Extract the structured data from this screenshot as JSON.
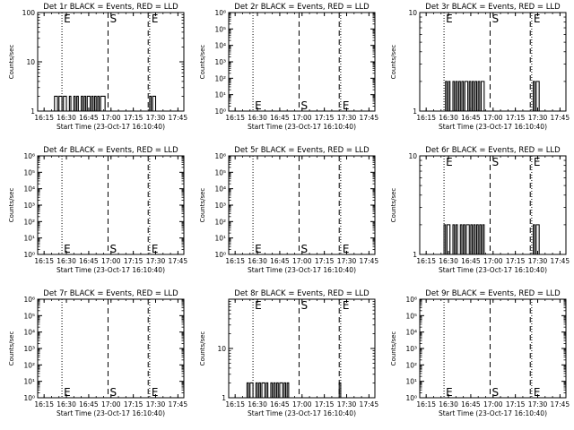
{
  "chart_data": [
    {
      "type": "line",
      "title": "Det 1r BLACK = Events, RED = LLD",
      "xlabel": "Start Time (23-Oct-17 16:10:40)",
      "ylabel": "Counts/sec",
      "xlim": [
        "16:10:40",
        "17:49:00"
      ],
      "ylim": [
        1,
        100
      ],
      "yscale": "log",
      "xticks": [
        "16:15",
        "16:30",
        "16:45",
        "17:00",
        "17:15",
        "17:30",
        "17:45"
      ],
      "yticks": [
        "1",
        "10",
        "100"
      ],
      "markers": [
        {
          "time": "16:27",
          "style": "dotted",
          "label": "E"
        },
        {
          "time": "16:58",
          "style": "dashed",
          "label": "S"
        },
        {
          "time": "17:25",
          "style": "dashed",
          "label": ""
        },
        {
          "time": "17:26",
          "style": "dotted",
          "label": "E"
        }
      ],
      "series": [
        {
          "color": "#000000",
          "segments": [
            {
              "x": [
                "16:22",
                "16:23",
                "16:24",
                "16:25",
                "16:26",
                "16:27",
                "16:28",
                "16:29",
                "16:30",
                "16:31",
                "16:32",
                "16:33",
                "16:34",
                "16:35",
                "16:36",
                "16:37",
                "16:38",
                "16:39",
                "16:40",
                "16:41",
                "16:42",
                "16:43",
                "16:44",
                "16:45",
                "16:46",
                "16:47",
                "16:48",
                "16:49",
                "16:50",
                "16:51",
                "16:52",
                "16:53",
                "16:54",
                "16:55"
              ],
              "y": [
                2,
                2,
                1,
                2,
                2,
                1,
                2,
                2,
                1,
                1,
                2,
                1,
                1,
                2,
                1,
                2,
                1,
                1,
                2,
                1,
                2,
                1,
                2,
                2,
                1,
                2,
                1,
                2,
                1,
                2,
                1,
                2,
                2,
                2
              ]
            },
            {
              "x": [
                "17:26",
                "17:27",
                "17:28",
                "17:29"
              ],
              "y": [
                2,
                1,
                2,
                2
              ]
            }
          ]
        }
      ]
    },
    {
      "type": "line",
      "title": "Det 2r BLACK = Events, RED = LLD",
      "xlabel": "Start Time (23-Oct-17 16:10:40)",
      "ylabel": "Counts/sec",
      "xlim": [
        "16:10:40",
        "17:49:00"
      ],
      "ylim": [
        1,
        1000000
      ],
      "yscale": "log",
      "xticks": [
        "16:15",
        "16:30",
        "16:45",
        "17:00",
        "17:15",
        "17:30",
        "17:45"
      ],
      "yticks": [
        "10⁰",
        "10¹",
        "10²",
        "10³",
        "10⁴",
        "10⁵",
        "10⁶"
      ],
      "markers": [
        {
          "time": "16:27",
          "style": "dotted",
          "label": "E"
        },
        {
          "time": "16:58",
          "style": "dashed",
          "label": "S"
        },
        {
          "time": "17:25",
          "style": "dashed",
          "label": ""
        },
        {
          "time": "17:26",
          "style": "dotted",
          "label": "E"
        }
      ],
      "series": []
    },
    {
      "type": "line",
      "title": "Det 3r BLACK = Events, RED = LLD",
      "xlabel": "Start Time (23-Oct-17 16:10:40)",
      "ylabel": "Counts/sec",
      "xlim": [
        "16:10:40",
        "17:49:00"
      ],
      "ylim": [
        1,
        10
      ],
      "yscale": "log",
      "xticks": [
        "16:15",
        "16:30",
        "16:45",
        "17:00",
        "17:15",
        "17:30",
        "17:45"
      ],
      "yticks": [
        "1",
        "10"
      ],
      "markers": [
        {
          "time": "16:27",
          "style": "dotted",
          "label": "E"
        },
        {
          "time": "16:58",
          "style": "dashed",
          "label": "S"
        },
        {
          "time": "17:25",
          "style": "dashed",
          "label": ""
        },
        {
          "time": "17:26",
          "style": "dotted",
          "label": "E"
        }
      ],
      "series": [
        {
          "color": "#000000",
          "segments": [
            {
              "x": [
                "16:28",
                "16:29",
                "16:30",
                "16:31",
                "16:32",
                "16:33",
                "16:34",
                "16:35",
                "16:36",
                "16:37",
                "16:38",
                "16:39",
                "16:40",
                "16:41",
                "16:42",
                "16:43",
                "16:44",
                "16:45",
                "16:46",
                "16:47",
                "16:48",
                "16:49",
                "16:50",
                "16:51",
                "16:52",
                "16:53"
              ],
              "y": [
                2,
                1,
                2,
                1,
                1,
                2,
                1,
                2,
                1,
                2,
                1,
                2,
                1,
                2,
                2,
                1,
                2,
                1,
                2,
                1,
                2,
                1,
                2,
                1,
                2,
                2
              ]
            },
            {
              "x": [
                "17:27",
                "17:28",
                "17:29",
                "17:30"
              ],
              "y": [
                2,
                1,
                2,
                2
              ]
            }
          ]
        }
      ]
    },
    {
      "type": "line",
      "title": "Det 4r BLACK = Events, RED = LLD",
      "xlabel": "Start Time (23-Oct-17 16:10:40)",
      "ylabel": "Counts/sec",
      "xlim": [
        "16:10:40",
        "17:49:00"
      ],
      "ylim": [
        1,
        1000000
      ],
      "yscale": "log",
      "xticks": [
        "16:15",
        "16:30",
        "16:45",
        "17:00",
        "17:15",
        "17:30",
        "17:45"
      ],
      "yticks": [
        "10⁰",
        "10¹",
        "10²",
        "10³",
        "10⁴",
        "10⁵",
        "10⁶"
      ],
      "markers": [
        {
          "time": "16:27",
          "style": "dotted",
          "label": "E"
        },
        {
          "time": "16:58",
          "style": "dashed",
          "label": "S"
        },
        {
          "time": "17:25",
          "style": "dashed",
          "label": ""
        },
        {
          "time": "17:26",
          "style": "dotted",
          "label": "E"
        }
      ],
      "series": []
    },
    {
      "type": "line",
      "title": "Det 5r BLACK = Events, RED = LLD",
      "xlabel": "Start Time (23-Oct-17 16:10:40)",
      "ylabel": "Counts/sec",
      "xlim": [
        "16:10:40",
        "17:49:00"
      ],
      "ylim": [
        1,
        1000000
      ],
      "yscale": "log",
      "xticks": [
        "16:15",
        "16:30",
        "16:45",
        "17:00",
        "17:15",
        "17:30",
        "17:45"
      ],
      "yticks": [
        "10⁰",
        "10¹",
        "10²",
        "10³",
        "10⁴",
        "10⁵",
        "10⁶"
      ],
      "markers": [
        {
          "time": "16:27",
          "style": "dotted",
          "label": "E"
        },
        {
          "time": "16:58",
          "style": "dashed",
          "label": "S"
        },
        {
          "time": "17:25",
          "style": "dashed",
          "label": ""
        },
        {
          "time": "17:26",
          "style": "dotted",
          "label": "E"
        }
      ],
      "series": []
    },
    {
      "type": "line",
      "title": "Det 6r BLACK = Events, RED = LLD",
      "xlabel": "Start Time (23-Oct-17 16:10:40)",
      "ylabel": "Counts/sec",
      "xlim": [
        "16:10:40",
        "17:49:00"
      ],
      "ylim": [
        1,
        10
      ],
      "yscale": "log",
      "xticks": [
        "16:15",
        "16:30",
        "16:45",
        "17:00",
        "17:15",
        "17:30",
        "17:45"
      ],
      "yticks": [
        "1",
        "10"
      ],
      "markers": [
        {
          "time": "16:27",
          "style": "dotted",
          "label": "E"
        },
        {
          "time": "16:58",
          "style": "dashed",
          "label": "S"
        },
        {
          "time": "17:25",
          "style": "dashed",
          "label": ""
        },
        {
          "time": "17:26",
          "style": "dotted",
          "label": "E"
        }
      ],
      "series": [
        {
          "color": "#000000",
          "segments": [
            {
              "x": [
                "16:27",
                "16:28",
                "16:29",
                "16:30",
                "16:31",
                "16:32",
                "16:33",
                "16:34",
                "16:35",
                "16:36",
                "16:37",
                "16:38",
                "16:39",
                "16:40",
                "16:41",
                "16:42",
                "16:43",
                "16:44",
                "16:45",
                "16:46",
                "16:47",
                "16:48",
                "16:49",
                "16:50",
                "16:51",
                "16:52",
                "16:53"
              ],
              "y": [
                2,
                1,
                2,
                2,
                1,
                1,
                2,
                1,
                2,
                1,
                1,
                2,
                1,
                2,
                1,
                2,
                2,
                1,
                2,
                1,
                2,
                1,
                2,
                1,
                2,
                1,
                2
              ]
            },
            {
              "x": [
                "17:27",
                "17:28",
                "17:29",
                "17:30"
              ],
              "y": [
                2,
                1,
                2,
                2
              ]
            }
          ]
        }
      ]
    },
    {
      "type": "line",
      "title": "Det 7r BLACK = Events, RED = LLD",
      "xlabel": "Start Time (23-Oct-17 16:10:40)",
      "ylabel": "Counts/sec",
      "xlim": [
        "16:10:40",
        "17:49:00"
      ],
      "ylim": [
        1,
        1000000
      ],
      "yscale": "log",
      "xticks": [
        "16:15",
        "16:30",
        "16:45",
        "17:00",
        "17:15",
        "17:30",
        "17:45"
      ],
      "yticks": [
        "10⁰",
        "10¹",
        "10²",
        "10³",
        "10⁴",
        "10⁵",
        "10⁶"
      ],
      "markers": [
        {
          "time": "16:27",
          "style": "dotted",
          "label": "E"
        },
        {
          "time": "16:58",
          "style": "dashed",
          "label": "S"
        },
        {
          "time": "17:25",
          "style": "dashed",
          "label": ""
        },
        {
          "time": "17:26",
          "style": "dotted",
          "label": "E"
        }
      ],
      "series": []
    },
    {
      "type": "line",
      "title": "Det 8r BLACK = Events, RED = LLD",
      "xlabel": "Start Time (23-Oct-17 16:10:40)",
      "ylabel": "Counts/sec",
      "xlim": [
        "16:10:40",
        "17:49:00"
      ],
      "ylim": [
        1,
        100
      ],
      "yscale": "log",
      "xticks": [
        "16:15",
        "16:30",
        "16:45",
        "17:00",
        "17:15",
        "17:30",
        "17:45"
      ],
      "yticks": [
        "1",
        "10"
      ],
      "markers": [
        {
          "time": "16:27",
          "style": "dotted",
          "label": "E"
        },
        {
          "time": "16:58",
          "style": "dashed",
          "label": "S"
        },
        {
          "time": "17:25",
          "style": "dashed",
          "label": ""
        },
        {
          "time": "17:26",
          "style": "dotted",
          "label": "E"
        }
      ],
      "series": [
        {
          "color": "#000000",
          "segments": [
            {
              "x": [
                "16:23",
                "16:24",
                "16:25",
                "16:26"
              ],
              "y": [
                2,
                1,
                2,
                2
              ]
            },
            {
              "x": [
                "16:29",
                "16:30",
                "16:31",
                "16:32",
                "16:33",
                "16:34",
                "16:35",
                "16:36",
                "16:37",
                "16:38",
                "16:39",
                "16:40",
                "16:41",
                "16:42",
                "16:43",
                "16:44",
                "16:45",
                "16:46",
                "16:47",
                "16:48",
                "16:49",
                "16:50"
              ],
              "y": [
                2,
                1,
                2,
                1,
                2,
                2,
                1,
                2,
                1,
                1,
                2,
                1,
                2,
                1,
                2,
                1,
                2,
                2,
                1,
                2,
                1,
                2
              ]
            },
            {
              "x": [
                "17:25",
                "17:26",
                "17:27"
              ],
              "y": [
                2,
                1,
                1
              ]
            }
          ]
        }
      ]
    },
    {
      "type": "line",
      "title": "Det 9r BLACK = Events, RED = LLD",
      "xlabel": "Start Time (23-Oct-17 16:10:40)",
      "ylabel": "Counts/sec",
      "xlim": [
        "16:10:40",
        "17:49:00"
      ],
      "ylim": [
        1,
        1000000
      ],
      "yscale": "log",
      "xticks": [
        "16:15",
        "16:30",
        "16:45",
        "17:00",
        "17:15",
        "17:30",
        "17:45"
      ],
      "yticks": [
        "10⁰",
        "10¹",
        "10²",
        "10³",
        "10⁴",
        "10⁵",
        "10⁶"
      ],
      "markers": [
        {
          "time": "16:27",
          "style": "dotted",
          "label": "E"
        },
        {
          "time": "16:58",
          "style": "dashed",
          "label": "S"
        },
        {
          "time": "17:25",
          "style": "dashed",
          "label": ""
        },
        {
          "time": "17:26",
          "style": "dotted",
          "label": "E"
        }
      ],
      "series": []
    }
  ]
}
